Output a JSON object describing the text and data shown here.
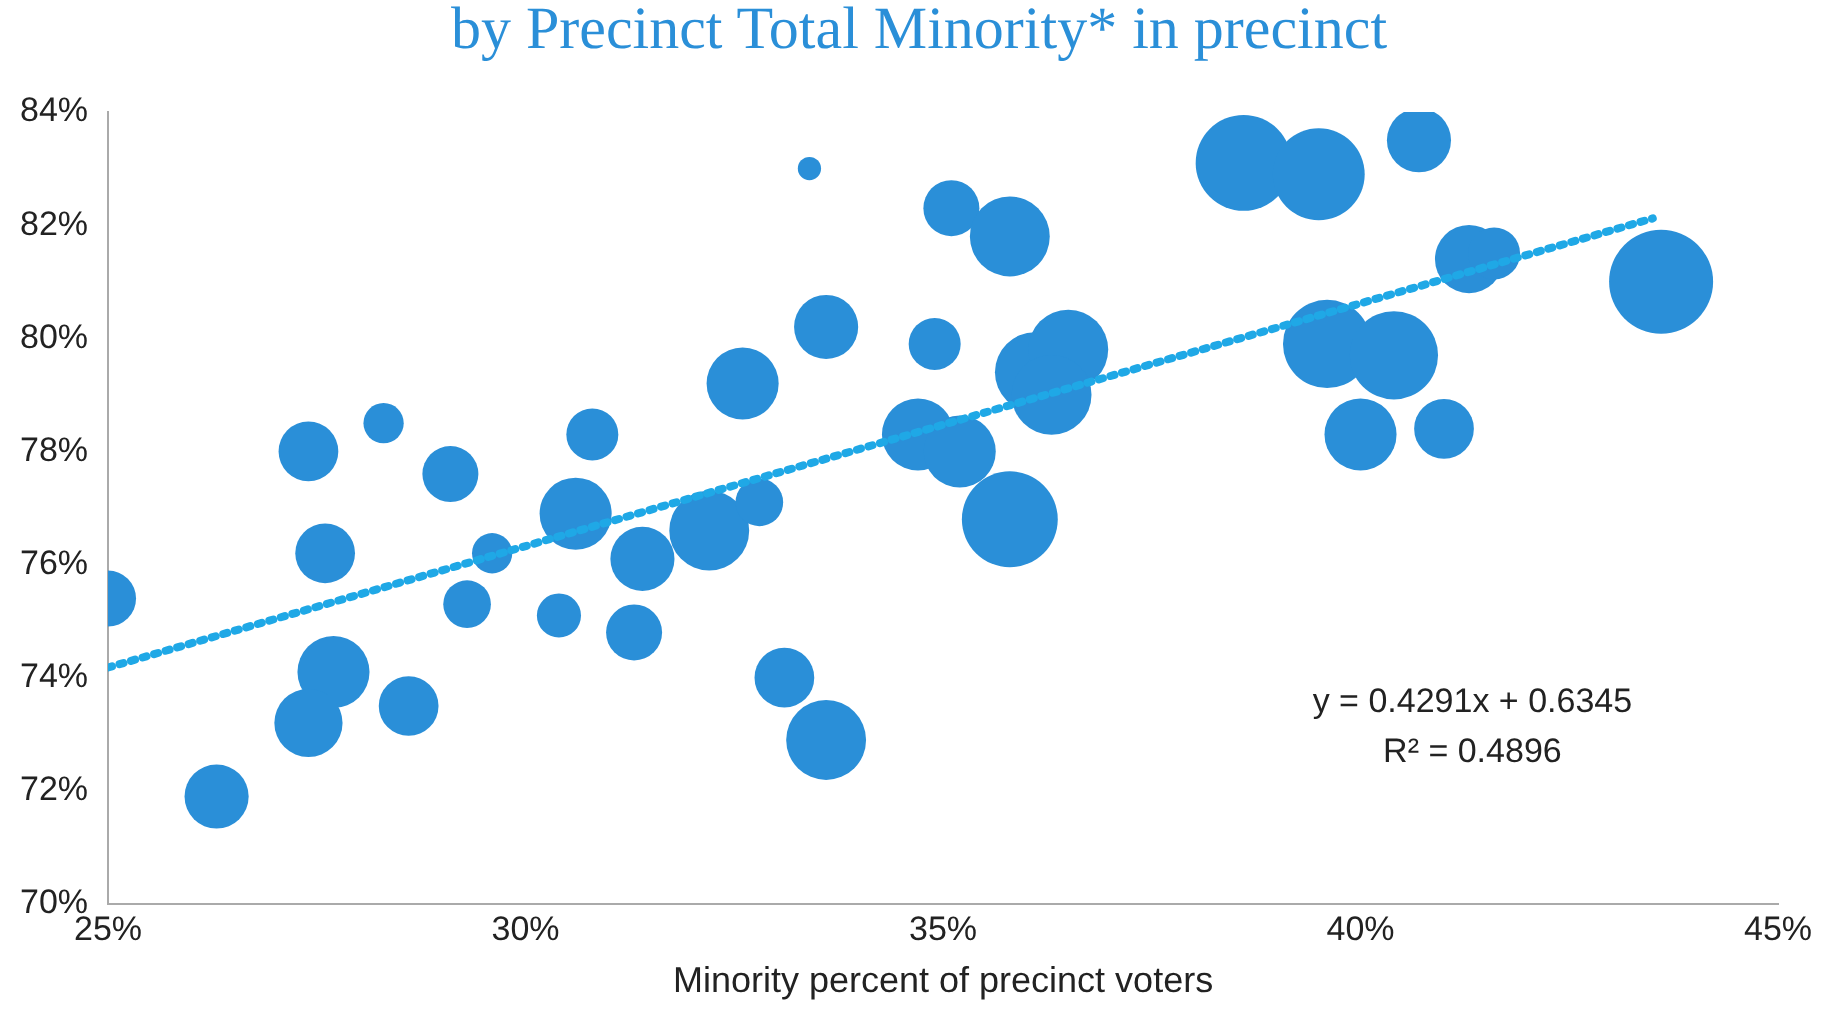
{
  "chart_data": {
    "type": "bubble",
    "title": "by Precinct Total Minority* in precinct",
    "xlabel": "Minority percent of precinct voters",
    "xlim": [
      25,
      45
    ],
    "xticks": [
      {
        "value": 25,
        "label": "25%"
      },
      {
        "value": 30,
        "label": "30%"
      },
      {
        "value": 35,
        "label": "35%"
      },
      {
        "value": 40,
        "label": "40%"
      },
      {
        "value": 45,
        "label": "45%"
      }
    ],
    "ylim": [
      70,
      84
    ],
    "yticks": [
      {
        "value": 70,
        "label": "70%"
      },
      {
        "value": 72,
        "label": "72%"
      },
      {
        "value": 74,
        "label": "74%"
      },
      {
        "value": 76,
        "label": "76%"
      },
      {
        "value": 78,
        "label": "78%"
      },
      {
        "value": 80,
        "label": "80%"
      },
      {
        "value": 82,
        "label": "82%"
      },
      {
        "value": 84,
        "label": "84%"
      }
    ],
    "grid": false,
    "legend": false,
    "annotations": [
      "y = 0.4291x + 0.6345",
      "R² = 0.4896"
    ],
    "series": [
      {
        "color": "#2a8fd8",
        "x": [
          25.0,
          26.3,
          27.4,
          27.6,
          27.7,
          27.4,
          28.3,
          28.6,
          29.1,
          29.6,
          29.3,
          30.4,
          30.8,
          30.6,
          31.4,
          31.3,
          32.2,
          32.8,
          32.6,
          33.1,
          33.6,
          33.6,
          33.4,
          35.1,
          35.8,
          34.9,
          34.7,
          35.2,
          35.8,
          36.1,
          36.5,
          36.3,
          38.6,
          39.5,
          40.7,
          39.6,
          40.4,
          40.0,
          41.0,
          41.3,
          41.6,
          43.6
        ],
        "values": [
          75.4,
          71.9,
          78.0,
          76.2,
          74.1,
          73.2,
          78.5,
          73.5,
          77.6,
          76.2,
          75.3,
          75.1,
          78.3,
          76.9,
          76.1,
          74.8,
          76.6,
          77.1,
          79.2,
          74.0,
          72.9,
          80.2,
          83.0,
          82.3,
          81.8,
          79.9,
          78.3,
          78.0,
          76.8,
          79.4,
          79.8,
          79.0,
          83.1,
          82.9,
          83.5,
          79.9,
          79.7,
          78.3,
          78.4,
          81.4,
          81.5,
          81.0
        ],
        "sizes": [
          0.29,
          0.38,
          0.33,
          0.33,
          0.48,
          0.43,
          0.15,
          0.33,
          0.29,
          0.15,
          0.21,
          0.18,
          0.25,
          0.48,
          0.38,
          0.29,
          0.59,
          0.21,
          0.48,
          0.33,
          0.59,
          0.38,
          0.05,
          0.29,
          0.59,
          0.25,
          0.48,
          0.48,
          0.85,
          0.59,
          0.59,
          0.59,
          0.85,
          0.78,
          0.38,
          0.72,
          0.72,
          0.48,
          0.33,
          0.43,
          0.25,
          1
        ]
      },
      {
        "type": "line",
        "color": "#1fa8e6",
        "line_style": "dotted",
        "x": [
          25,
          43.5
        ],
        "values": [
          74.18,
          82.12
        ]
      }
    ]
  }
}
